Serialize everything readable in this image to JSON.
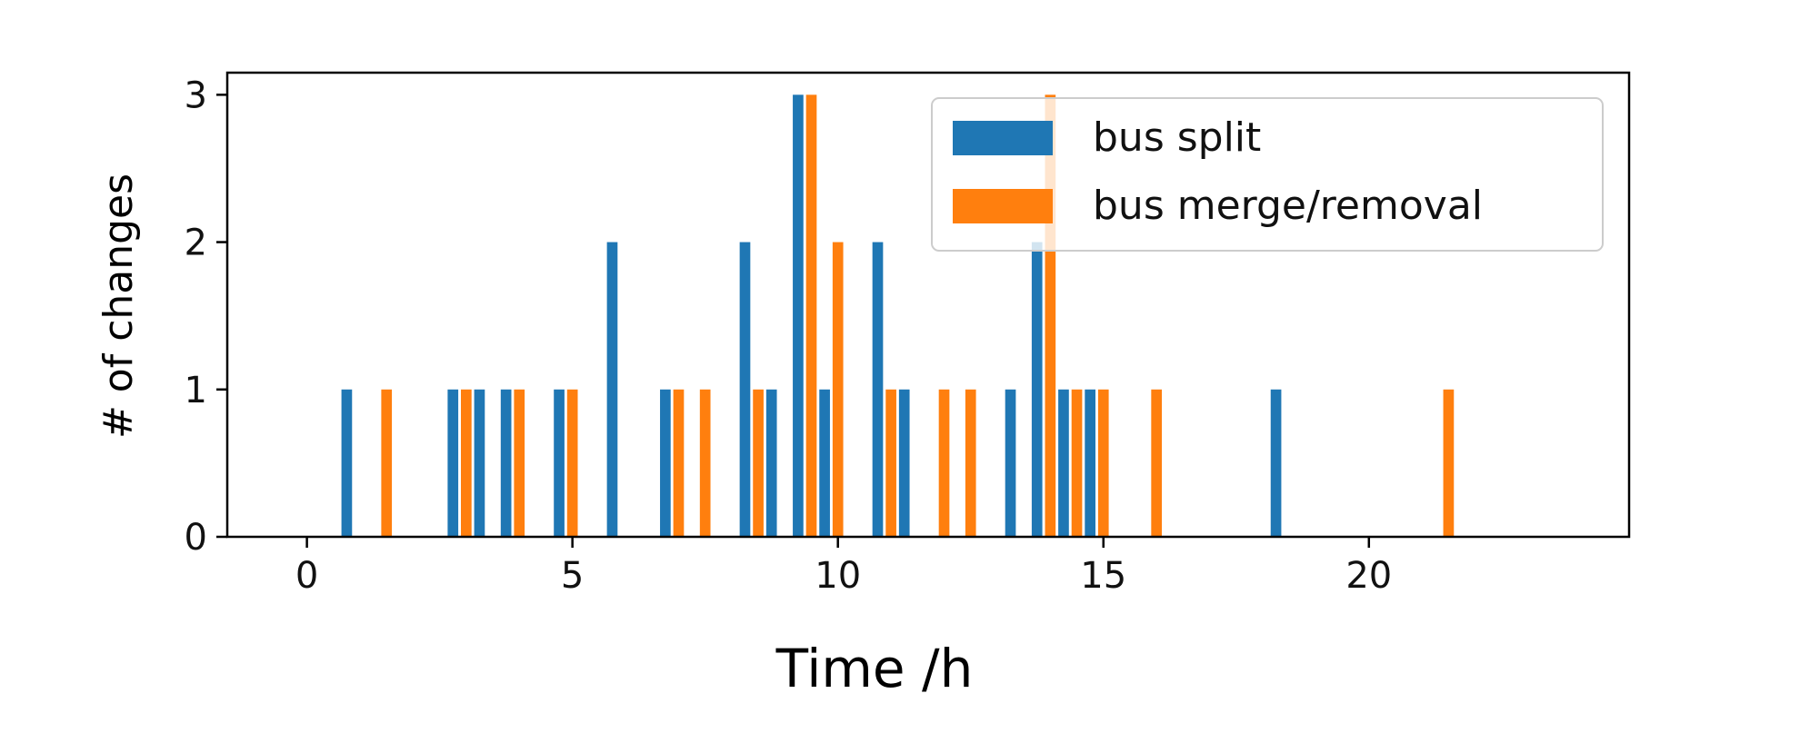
{
  "chart_data": {
    "type": "bar",
    "xlabel": "Time /h",
    "ylabel": "# of changes",
    "xlim": [
      -1.5,
      24.9
    ],
    "ylim": [
      0,
      3.15
    ],
    "xticks": [
      "0",
      "5",
      "10",
      "15",
      "20"
    ],
    "yticks": [
      "0",
      "1",
      "2",
      "3"
    ],
    "bar_width_h": 0.2,
    "legend_position": "top-right",
    "grid": false,
    "series": [
      {
        "name": "bus split",
        "color": "#1f77b4",
        "x": [
          0.75,
          2.75,
          3.25,
          3.75,
          4.75,
          5.75,
          6.75,
          8.25,
          8.75,
          9.25,
          9.75,
          10.75,
          11.25,
          13.25,
          13.75,
          14.25,
          14.75,
          18.25
        ],
        "values": [
          1,
          1,
          1,
          1,
          1,
          2,
          1,
          2,
          1,
          3,
          1,
          2,
          1,
          1,
          2,
          1,
          1,
          1
        ]
      },
      {
        "name": "bus merge/removal",
        "color": "#ff7f0e",
        "x": [
          1.5,
          3.0,
          4.0,
          5.0,
          7.0,
          7.5,
          8.5,
          9.5,
          10.0,
          11.0,
          12.0,
          12.5,
          14.0,
          14.5,
          15.0,
          16.0,
          21.5
        ],
        "values": [
          1,
          1,
          1,
          1,
          1,
          1,
          1,
          3,
          2,
          1,
          1,
          1,
          3,
          1,
          1,
          1,
          1
        ]
      }
    ]
  }
}
